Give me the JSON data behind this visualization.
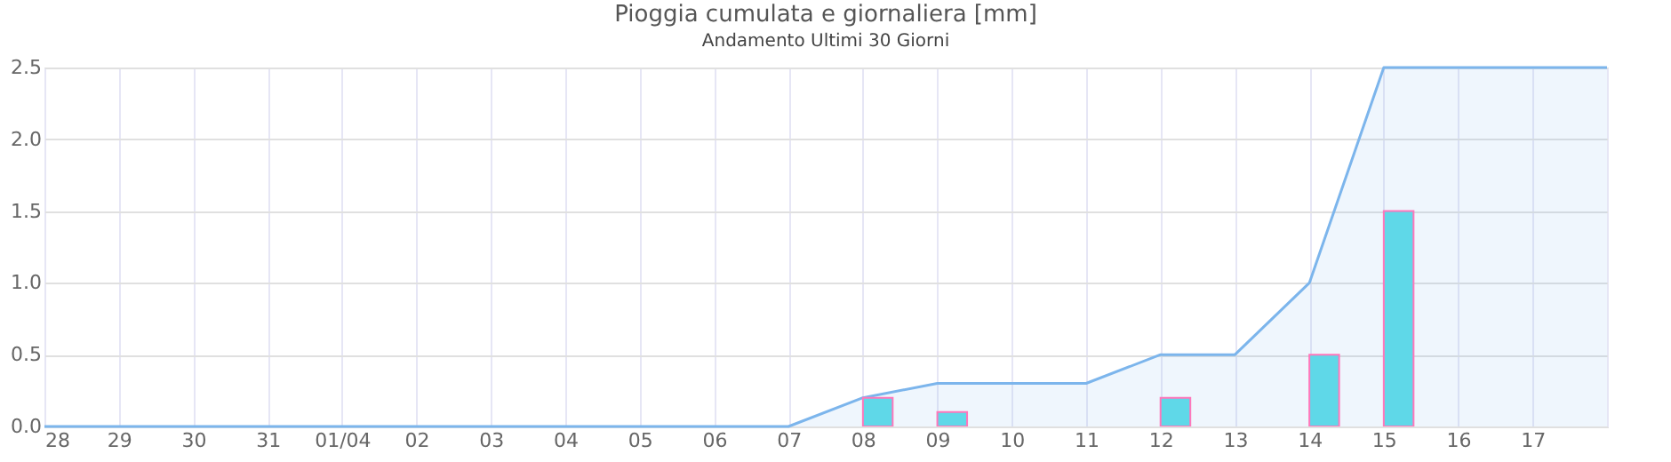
{
  "chart_data": {
    "type": "bar",
    "title": "Pioggia cumulata e giornaliera [mm]",
    "subtitle": "Andamento Ultimi 30 Giorni",
    "categories": [
      "28",
      "29",
      "30",
      "31",
      "01/04",
      "02",
      "03",
      "04",
      "05",
      "06",
      "07",
      "08",
      "09",
      "10",
      "11",
      "12",
      "13",
      "14",
      "15",
      "16",
      "17",
      null
    ],
    "series": [
      {
        "type": "area",
        "color": "#7cb5ec",
        "values": [
          0,
          0,
          0,
          0,
          0,
          0,
          0,
          0,
          0,
          0,
          0,
          0.2,
          0.3,
          0.3,
          0.3,
          0.5,
          0.5,
          1.0,
          2.5,
          2.5,
          2.5,
          2.5
        ]
      },
      {
        "color": "#5fd8e8",
        "values": [
          null,
          null,
          null,
          null,
          null,
          null,
          null,
          null,
          null,
          null,
          null,
          0.2,
          0.1,
          null,
          null,
          0.2,
          null,
          0.5,
          1.5,
          null,
          null,
          null
        ]
      }
    ],
    "ylim": [
      0,
      2.5
    ],
    "yticks": [
      {
        "value": 0,
        "label": "0.0"
      },
      {
        "value": 0.5,
        "label": "0.5"
      },
      {
        "value": 1,
        "label": "1.0"
      },
      {
        "value": 1.5,
        "label": "1.5"
      },
      {
        "value": 2,
        "label": "2.0"
      },
      {
        "value": 2.5,
        "label": "2.5"
      }
    ],
    "grid": true
  }
}
